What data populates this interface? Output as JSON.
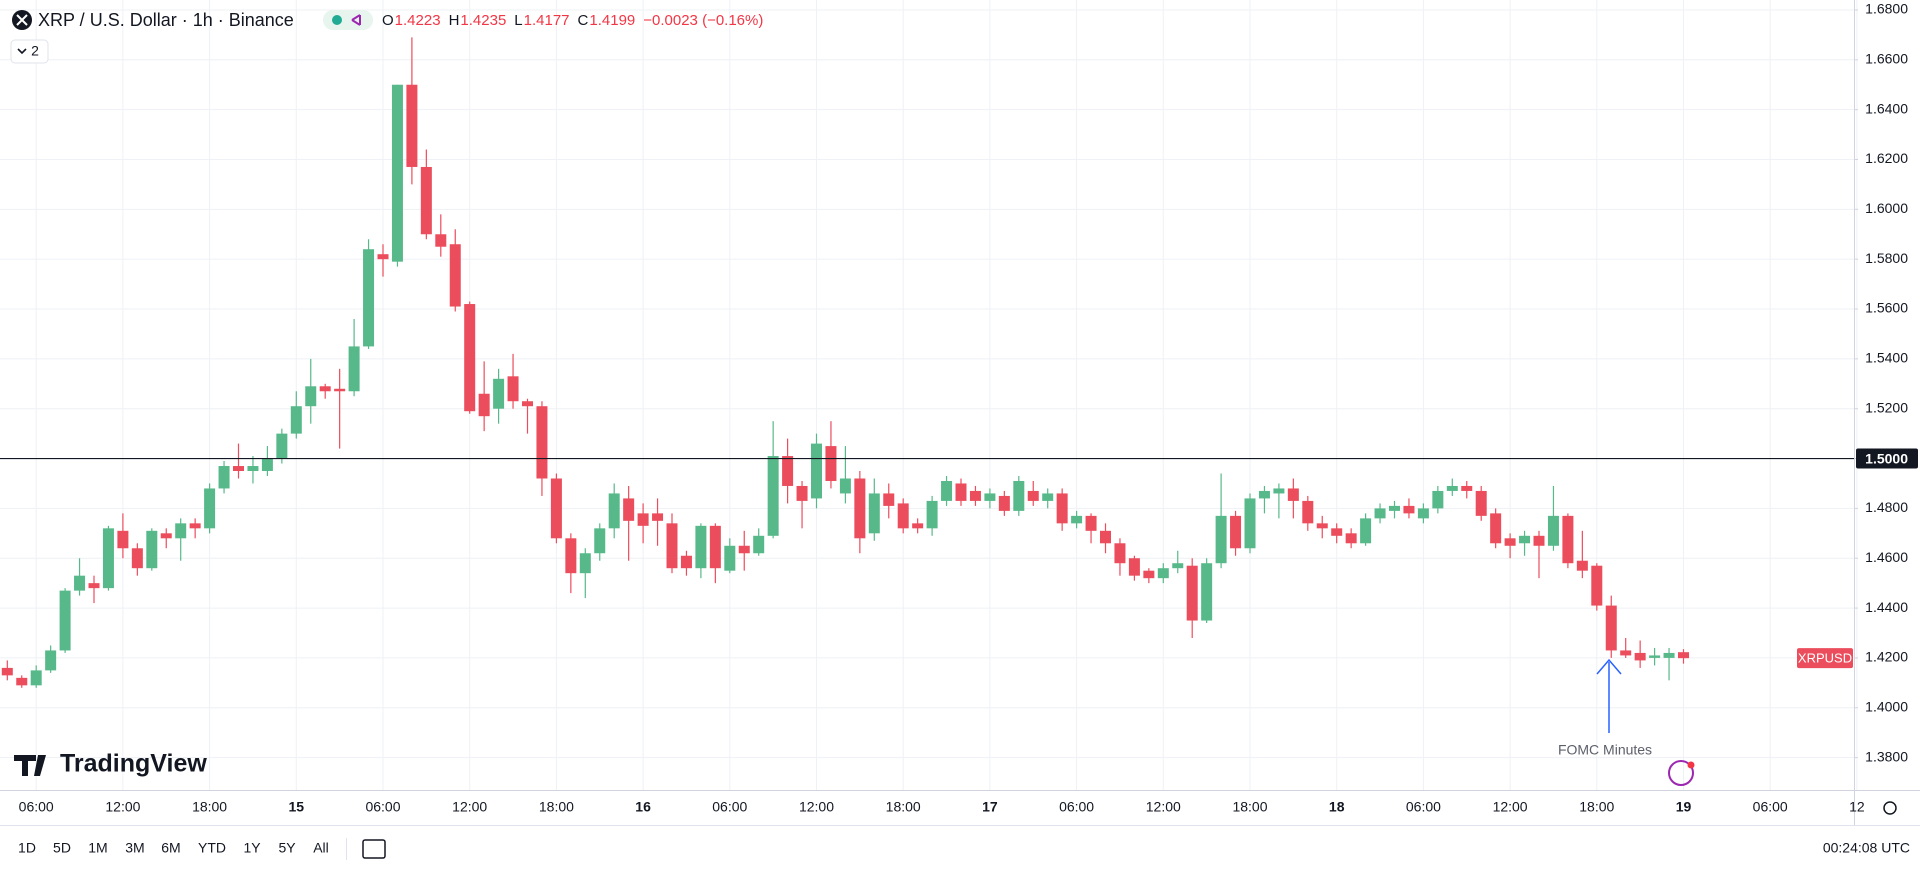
{
  "header": {
    "symbol": "XRP / U.S. Dollar · 1h · Binance",
    "ohlc": [
      {
        "key": "O",
        "value": "1.4223"
      },
      {
        "key": "H",
        "value": "1.4235"
      },
      {
        "key": "L",
        "value": "1.4177"
      },
      {
        "key": "C",
        "value": "1.4199"
      }
    ],
    "change": "−0.0023 (−0.16%)",
    "indicators": "2"
  },
  "logo": "TradingView",
  "toolbar": {
    "ranges": [
      "1D",
      "5D",
      "1M",
      "3M",
      "6M",
      "YTD",
      "1Y",
      "5Y",
      "All"
    ],
    "clock": "00:24:08 UTC"
  },
  "chart_data": {
    "type": "candlestick",
    "categories": [
      null,
      null,
      "06:00",
      null,
      null,
      null,
      null,
      null,
      "12:00",
      null,
      null,
      null,
      null,
      null,
      "18:00",
      null,
      null,
      null,
      null,
      null,
      "15",
      null,
      null,
      null,
      null,
      null,
      "06:00",
      null,
      null,
      null,
      null,
      null,
      "12:00",
      null,
      null,
      null,
      null,
      null,
      "18:00",
      null,
      null,
      null,
      null,
      null,
      "16",
      null,
      null,
      null,
      null,
      null,
      "06:00",
      null,
      null,
      null,
      null,
      null,
      "12:00",
      null,
      null,
      null,
      null,
      null,
      "18:00",
      null,
      null,
      null,
      null,
      null,
      "17",
      null,
      null,
      null,
      null,
      null,
      "06:00",
      null,
      null,
      null,
      null,
      null,
      "12:00",
      null,
      null,
      null,
      null,
      null,
      "18:00",
      null,
      null,
      null,
      null,
      null,
      "18",
      null,
      null,
      null,
      null,
      null,
      "06:00",
      null,
      null,
      null,
      null,
      null,
      "12:00",
      null,
      null,
      null,
      null,
      null,
      "18:00",
      null,
      null,
      null,
      null,
      null,
      "19"
    ],
    "future_categories": [
      "06:00",
      "12"
    ],
    "open": [
      1.416,
      1.412,
      1.409,
      1.415,
      1.423,
      1.447,
      1.45,
      1.448,
      1.471,
      1.464,
      1.456,
      1.47,
      1.468,
      1.474,
      1.472,
      1.488,
      1.497,
      1.495,
      1.495,
      1.5,
      1.51,
      1.521,
      1.529,
      1.528,
      1.527,
      1.545,
      1.582,
      1.579,
      1.65,
      1.617,
      1.59,
      1.586,
      1.562,
      1.526,
      1.52,
      1.533,
      1.523,
      1.521,
      1.492,
      1.468,
      1.454,
      1.462,
      1.472,
      1.484,
      1.478,
      1.478,
      1.474,
      1.461,
      1.456,
      1.473,
      1.455,
      1.465,
      1.462,
      1.469,
      1.501,
      1.489,
      1.484,
      1.505,
      1.486,
      1.492,
      1.47,
      1.486,
      1.482,
      1.474,
      1.472,
      1.483,
      1.49,
      1.487,
      1.483,
      1.485,
      1.479,
      1.487,
      1.483,
      1.486,
      1.474,
      1.477,
      1.471,
      1.466,
      1.46,
      1.455,
      1.452,
      1.456,
      1.457,
      1.435,
      1.458,
      1.477,
      1.464,
      1.484,
      1.486,
      1.488,
      1.483,
      1.474,
      1.472,
      1.47,
      1.466,
      1.476,
      1.479,
      1.481,
      1.476,
      1.48,
      1.487,
      1.489,
      1.487,
      1.478,
      1.468,
      1.466,
      1.469,
      1.465,
      1.477,
      1.459,
      1.457,
      1.441,
      1.423,
      1.422,
      1.42,
      1.42,
      1.4223
    ],
    "high": [
      1.419,
      1.413,
      1.417,
      1.425,
      1.448,
      1.46,
      1.453,
      1.473,
      1.478,
      1.466,
      1.472,
      1.472,
      1.476,
      1.476,
      1.49,
      1.499,
      1.506,
      1.501,
      1.505,
      1.512,
      1.527,
      1.54,
      1.53,
      1.536,
      1.556,
      1.588,
      1.586,
      1.65,
      1.669,
      1.624,
      1.598,
      1.592,
      1.563,
      1.539,
      1.536,
      1.542,
      1.524,
      1.523,
      1.494,
      1.47,
      1.464,
      1.474,
      1.49,
      1.489,
      1.482,
      1.484,
      1.478,
      1.463,
      1.474,
      1.474,
      1.468,
      1.471,
      1.472,
      1.515,
      1.508,
      1.491,
      1.51,
      1.515,
      1.505,
      1.495,
      1.492,
      1.49,
      1.484,
      1.476,
      1.485,
      1.493,
      1.492,
      1.489,
      1.488,
      1.487,
      1.493,
      1.491,
      1.488,
      1.488,
      1.479,
      1.478,
      1.474,
      1.468,
      1.461,
      1.456,
      1.458,
      1.463,
      1.46,
      1.46,
      1.494,
      1.479,
      1.486,
      1.489,
      1.49,
      1.492,
      1.485,
      1.477,
      1.474,
      1.472,
      1.478,
      1.482,
      1.483,
      1.484,
      1.482,
      1.489,
      1.492,
      1.491,
      1.489,
      1.48,
      1.47,
      1.471,
      1.471,
      1.489,
      1.478,
      1.471,
      1.458,
      1.445,
      1.428,
      1.427,
      1.424,
      1.424,
      1.4235
    ],
    "low": [
      1.411,
      1.408,
      1.408,
      1.414,
      1.422,
      1.445,
      1.442,
      1.447,
      1.46,
      1.453,
      1.455,
      1.464,
      1.459,
      1.468,
      1.47,
      1.486,
      1.492,
      1.49,
      1.493,
      1.498,
      1.508,
      1.514,
      1.524,
      1.504,
      1.525,
      1.544,
      1.573,
      1.577,
      1.61,
      1.588,
      1.581,
      1.559,
      1.518,
      1.511,
      1.514,
      1.52,
      1.51,
      1.485,
      1.466,
      1.446,
      1.444,
      1.459,
      1.468,
      1.459,
      1.466,
      1.465,
      1.454,
      1.453,
      1.452,
      1.45,
      1.454,
      1.455,
      1.461,
      1.468,
      1.482,
      1.472,
      1.48,
      1.488,
      1.482,
      1.462,
      1.467,
      1.476,
      1.47,
      1.47,
      1.469,
      1.481,
      1.481,
      1.481,
      1.48,
      1.477,
      1.477,
      1.481,
      1.48,
      1.471,
      1.472,
      1.466,
      1.462,
      1.453,
      1.451,
      1.45,
      1.45,
      1.454,
      1.428,
      1.434,
      1.456,
      1.461,
      1.462,
      1.478,
      1.476,
      1.476,
      1.471,
      1.468,
      1.466,
      1.464,
      1.465,
      1.474,
      1.476,
      1.476,
      1.474,
      1.478,
      1.485,
      1.484,
      1.475,
      1.464,
      1.46,
      1.461,
      1.452,
      1.463,
      1.456,
      1.452,
      1.439,
      1.42,
      1.42,
      1.416,
      1.417,
      1.411,
      1.4177
    ],
    "close": [
      1.413,
      1.409,
      1.415,
      1.423,
      1.447,
      1.453,
      1.448,
      1.472,
      1.464,
      1.456,
      1.471,
      1.468,
      1.474,
      1.472,
      1.488,
      1.497,
      1.495,
      1.497,
      1.5,
      1.51,
      1.521,
      1.529,
      1.527,
      1.527,
      1.545,
      1.584,
      1.58,
      1.65,
      1.617,
      1.59,
      1.585,
      1.561,
      1.519,
      1.517,
      1.532,
      1.523,
      1.521,
      1.492,
      1.468,
      1.454,
      1.462,
      1.472,
      1.486,
      1.475,
      1.473,
      1.475,
      1.456,
      1.456,
      1.473,
      1.456,
      1.465,
      1.462,
      1.469,
      1.501,
      1.489,
      1.483,
      1.506,
      1.491,
      1.492,
      1.468,
      1.486,
      1.481,
      1.472,
      1.472,
      1.483,
      1.491,
      1.483,
      1.483,
      1.486,
      1.479,
      1.491,
      1.483,
      1.486,
      1.474,
      1.477,
      1.471,
      1.466,
      1.458,
      1.453,
      1.452,
      1.456,
      1.458,
      1.435,
      1.458,
      1.477,
      1.464,
      1.484,
      1.487,
      1.488,
      1.483,
      1.474,
      1.472,
      1.469,
      1.466,
      1.476,
      1.48,
      1.481,
      1.478,
      1.48,
      1.487,
      1.489,
      1.487,
      1.477,
      1.466,
      1.465,
      1.469,
      1.465,
      1.477,
      1.458,
      1.455,
      1.441,
      1.423,
      1.421,
      1.419,
      1.421,
      1.422,
      1.4199
    ],
    "up_color": "#57b98a",
    "down_color": "#eb4d5c",
    "ylim": [
      1.367,
      1.684
    ],
    "yticks": [
      {
        "value": 1.38,
        "label": "1.3800"
      },
      {
        "value": 1.4,
        "label": "1.4000"
      },
      {
        "value": 1.42,
        "label": "1.4200"
      },
      {
        "value": 1.44,
        "label": "1.4400"
      },
      {
        "value": 1.46,
        "label": "1.4600"
      },
      {
        "value": 1.48,
        "label": "1.4800"
      },
      {
        "value": 1.5,
        "label": "1.5000"
      },
      {
        "value": 1.52,
        "label": "1.5200"
      },
      {
        "value": 1.54,
        "label": "1.5400"
      },
      {
        "value": 1.56,
        "label": "1.5600"
      },
      {
        "value": 1.58,
        "label": "1.5800"
      },
      {
        "value": 1.6,
        "label": "1.6000"
      },
      {
        "value": 1.62,
        "label": "1.6200"
      },
      {
        "value": 1.64,
        "label": "1.6400"
      },
      {
        "value": 1.66,
        "label": "1.6600"
      },
      {
        "value": 1.68,
        "label": "1.6800"
      }
    ],
    "grid": true,
    "hline": {
      "value": 1.5,
      "label": "1.5000"
    },
    "last_price_label": "XRPUSD",
    "annotation": "FOMC Minutes"
  }
}
